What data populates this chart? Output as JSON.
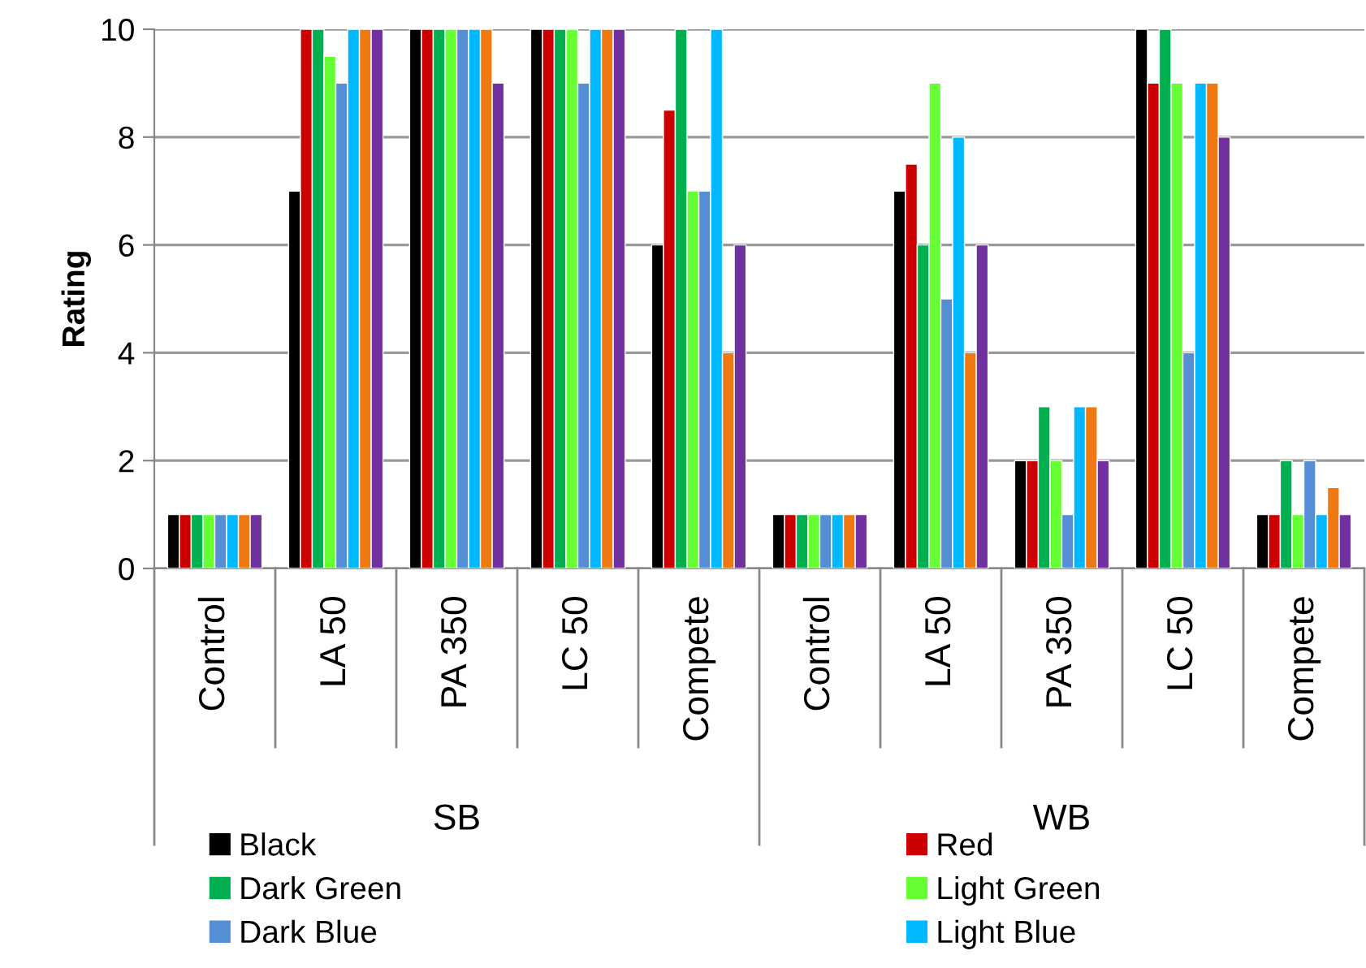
{
  "chart_data": {
    "type": "bar",
    "ylabel": "Rating",
    "categories": [
      "Control",
      "LA 50",
      "PA 350",
      "LC 50",
      "Compete",
      "Control",
      "LA 50",
      "PA 350",
      "LC 50",
      "Compete"
    ],
    "series": [
      {
        "name": "Black",
        "color": "#000000",
        "values": [
          1,
          7,
          10,
          10,
          6,
          1,
          7,
          2,
          10,
          1
        ]
      },
      {
        "name": "Red",
        "color": "#cc0000",
        "values": [
          1,
          10,
          10,
          10,
          8.5,
          1,
          7.5,
          2,
          9,
          1
        ]
      },
      {
        "name": "Dark Green",
        "color": "#00b050",
        "values": [
          1,
          10,
          10,
          10,
          10,
          1,
          6,
          3,
          10,
          2
        ]
      },
      {
        "name": "Light Green",
        "color": "#66ff33",
        "values": [
          1,
          9.5,
          10,
          10,
          7,
          1,
          9,
          2,
          9,
          1
        ]
      },
      {
        "name": "Dark Blue",
        "color": "#558ed5",
        "values": [
          1,
          9,
          10,
          9,
          7,
          1,
          5,
          1,
          4,
          2
        ]
      },
      {
        "name": "Light Blue",
        "color": "#00b8ff",
        "values": [
          1,
          10,
          10,
          10,
          10,
          1,
          8,
          3,
          9,
          1
        ]
      },
      {
        "color": "#f07810",
        "values": [
          1,
          10,
          10,
          10,
          4,
          1,
          4,
          3,
          9,
          1.5
        ]
      },
      {
        "color": "#7030a0",
        "values": [
          1,
          10,
          9,
          10,
          6,
          1,
          6,
          2,
          8,
          1
        ]
      }
    ],
    "annotations": [
      "SB",
      "WB"
    ],
    "ylim": [
      0,
      10
    ],
    "yticks": [
      0,
      2,
      4,
      6,
      8,
      10
    ],
    "grid": "y",
    "legend": "bottom"
  }
}
